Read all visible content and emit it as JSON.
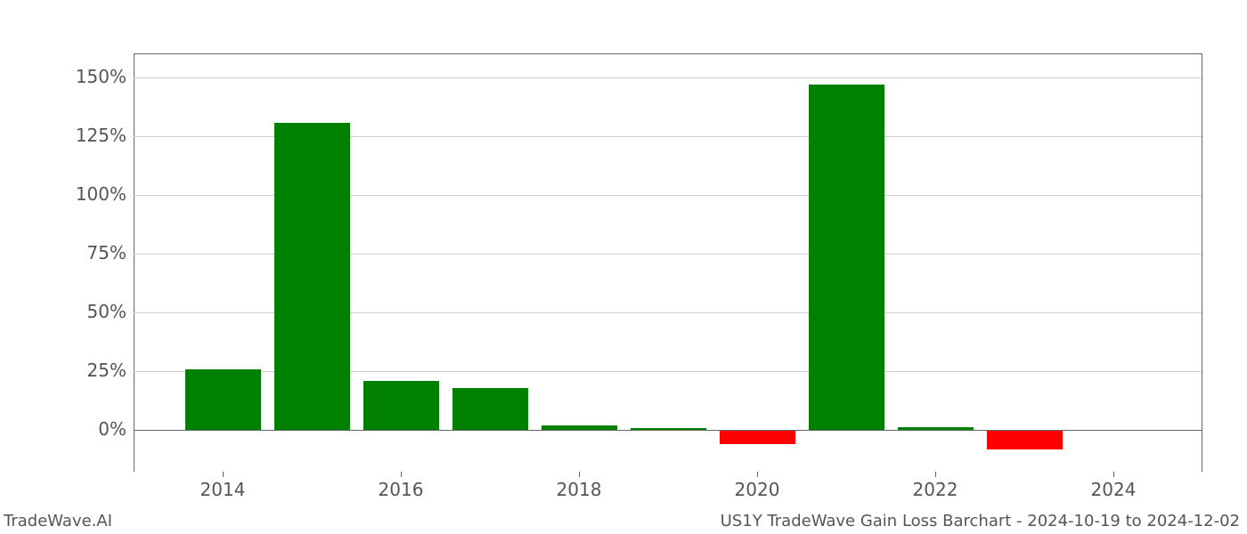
{
  "chart": {
    "type": "bar",
    "background_color": "#ffffff",
    "grid_color": "#cccccc",
    "spine_color": "#666666",
    "tick_label_color": "#555555",
    "tick_fontsize": 20,
    "footer_fontsize": 18,
    "years": [
      2014,
      2015,
      2016,
      2017,
      2018,
      2019,
      2020,
      2021,
      2022,
      2023,
      2024
    ],
    "values": [
      26,
      131,
      21,
      18,
      2,
      1,
      -6,
      147,
      1.5,
      -8,
      0
    ],
    "colors": {
      "positive": "#008000",
      "negative": "#ff0000"
    },
    "x_range": [
      2013,
      2025
    ],
    "xticks": [
      2014,
      2016,
      2018,
      2020,
      2022,
      2024
    ],
    "xtick_labels": [
      "2014",
      "2016",
      "2018",
      "2020",
      "2022",
      "2024"
    ],
    "y_range": [
      -18,
      160
    ],
    "yticks": [
      0,
      25,
      50,
      75,
      100,
      125,
      150
    ],
    "ytick_labels": [
      "0%",
      "25%",
      "50%",
      "75%",
      "100%",
      "125%",
      "150%"
    ],
    "bar_width_years": 0.85
  },
  "footer": {
    "left": "TradeWave.AI",
    "right": "US1Y TradeWave Gain Loss Barchart - 2024-10-19 to 2024-12-02"
  }
}
